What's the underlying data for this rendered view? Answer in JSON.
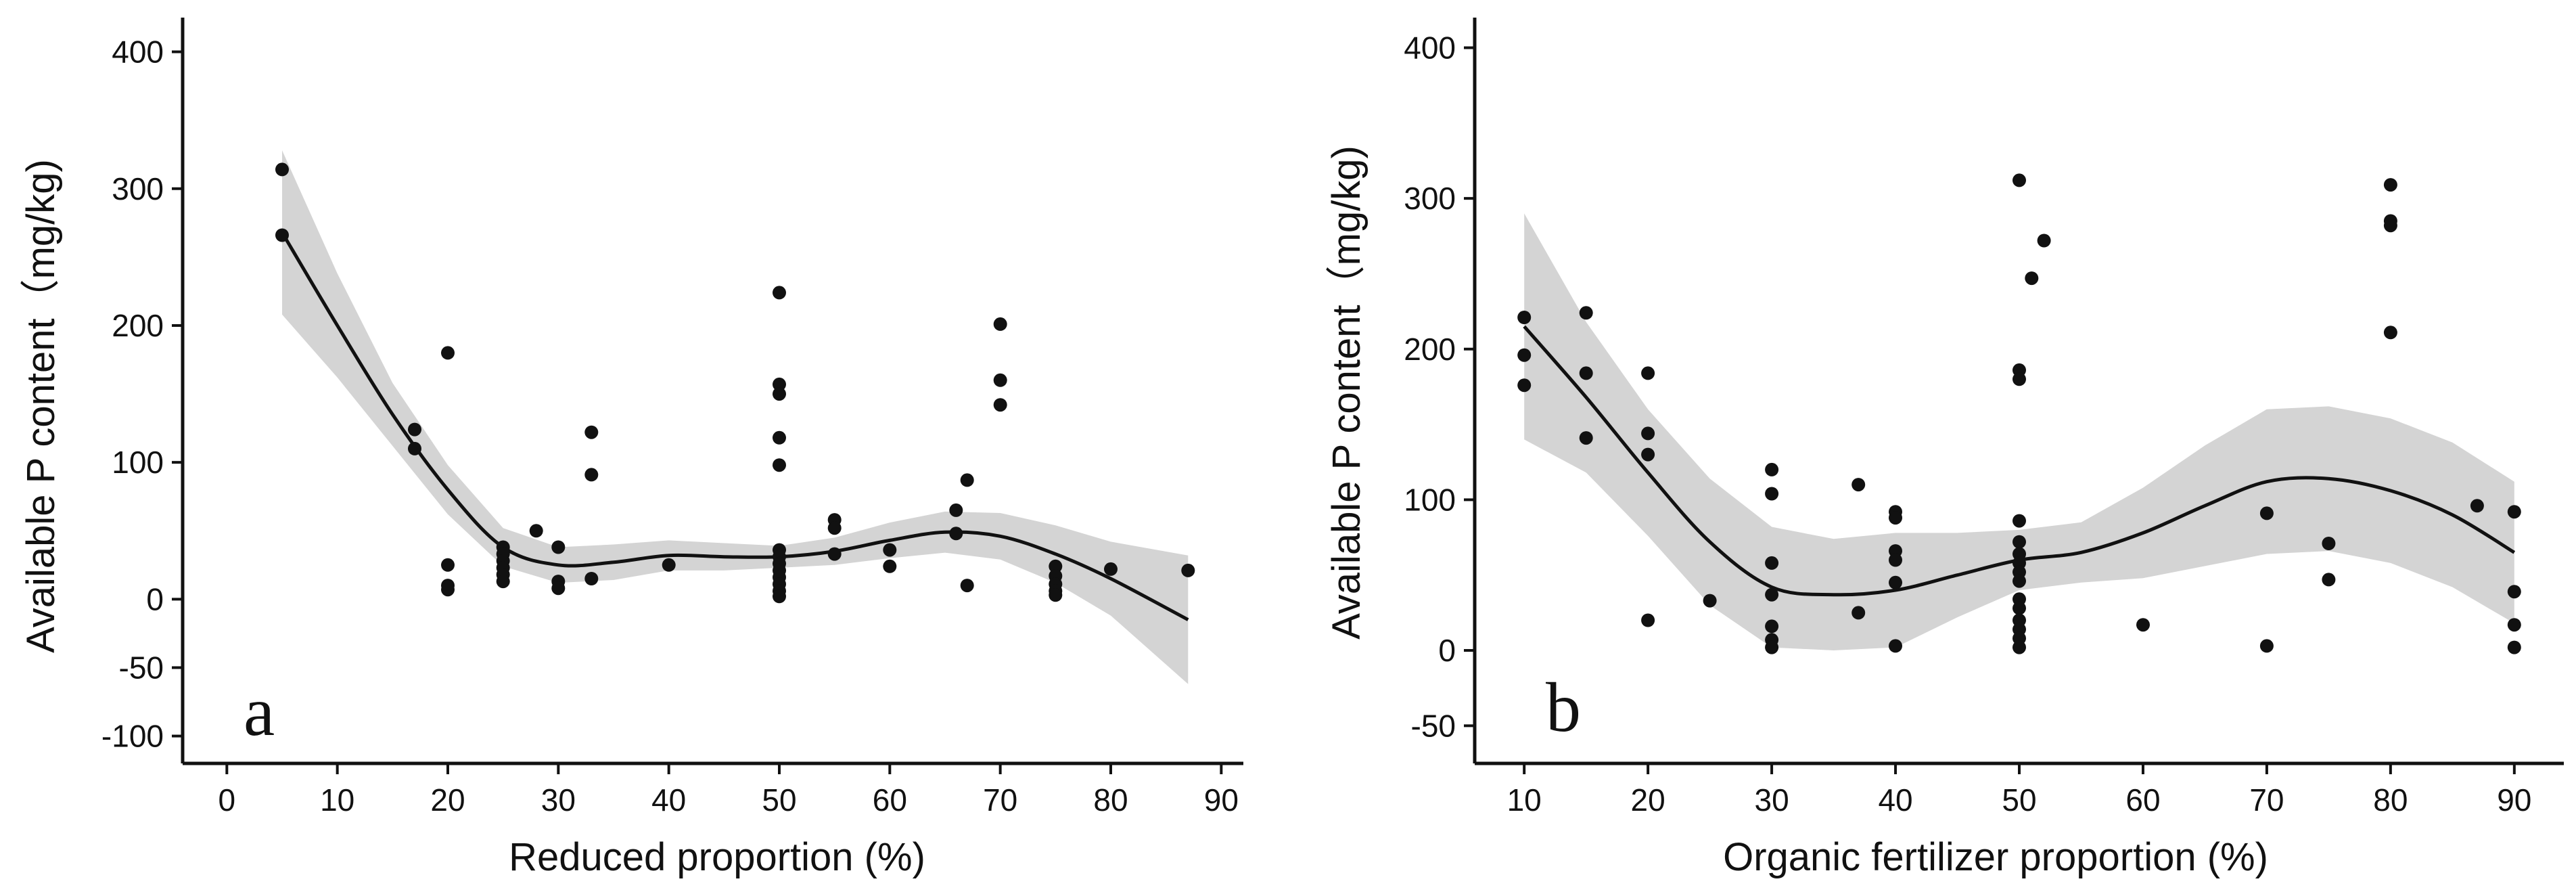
{
  "chart_data": [
    {
      "type": "scatter",
      "panel_label": "a",
      "xlabel": "Reduced proportion (%)",
      "ylabel": "Available P content（mg/kg)",
      "xlim": [
        -4,
        92
      ],
      "ylim": [
        -120,
        425
      ],
      "xticks": [
        0,
        10,
        20,
        30,
        40,
        50,
        60,
        70,
        80,
        90
      ],
      "yticks": [
        400,
        300,
        200,
        100,
        0,
        -50,
        -100
      ],
      "points": [
        [
          5,
          314
        ],
        [
          5,
          266
        ],
        [
          17,
          124
        ],
        [
          17,
          110
        ],
        [
          20,
          180
        ],
        [
          20,
          25
        ],
        [
          20,
          10
        ],
        [
          20,
          7
        ],
        [
          25,
          38
        ],
        [
          25,
          33
        ],
        [
          25,
          28
        ],
        [
          25,
          23
        ],
        [
          25,
          18
        ],
        [
          25,
          13
        ],
        [
          28,
          50
        ],
        [
          30,
          38
        ],
        [
          30,
          13
        ],
        [
          30,
          8
        ],
        [
          33,
          122
        ],
        [
          33,
          91
        ],
        [
          33,
          15
        ],
        [
          40,
          25
        ],
        [
          50,
          224
        ],
        [
          50,
          157
        ],
        [
          50,
          150
        ],
        [
          50,
          118
        ],
        [
          50,
          98
        ],
        [
          50,
          36
        ],
        [
          50,
          31
        ],
        [
          50,
          26
        ],
        [
          50,
          21
        ],
        [
          50,
          16
        ],
        [
          50,
          11
        ],
        [
          50,
          6
        ],
        [
          50,
          2
        ],
        [
          55,
          58
        ],
        [
          55,
          52
        ],
        [
          55,
          33
        ],
        [
          60,
          36
        ],
        [
          60,
          24
        ],
        [
          66,
          65
        ],
        [
          66,
          48
        ],
        [
          67,
          87
        ],
        [
          67,
          10
        ],
        [
          70,
          201
        ],
        [
          70,
          160
        ],
        [
          70,
          142
        ],
        [
          75,
          24
        ],
        [
          75,
          17
        ],
        [
          75,
          11
        ],
        [
          75,
          6
        ],
        [
          75,
          3
        ],
        [
          80,
          22
        ],
        [
          87,
          21
        ]
      ],
      "fit": {
        "x": [
          5,
          10,
          15,
          20,
          25,
          30,
          35,
          40,
          45,
          50,
          55,
          60,
          65,
          70,
          75,
          80,
          87
        ],
        "y": [
          268,
          200,
          135,
          80,
          38,
          25,
          27,
          32,
          31,
          31,
          35,
          43,
          49,
          46,
          33,
          15,
          -15
        ],
        "lower": [
          208,
          162,
          112,
          62,
          24,
          12,
          14,
          21,
          21,
          23,
          25,
          30,
          34,
          29,
          12,
          -12,
          -62
        ],
        "upper": [
          328,
          238,
          158,
          98,
          52,
          38,
          40,
          43,
          41,
          39,
          45,
          56,
          64,
          63,
          54,
          42,
          32
        ]
      }
    },
    {
      "type": "scatter",
      "panel_label": "b",
      "xlabel": "Organic fertilizer proportion (%)",
      "ylabel": "Available P content（mg/kg)",
      "xlim": [
        6,
        94
      ],
      "ylim": [
        -75,
        420
      ],
      "xticks": [
        10,
        20,
        30,
        40,
        50,
        60,
        70,
        80,
        90
      ],
      "yticks": [
        400,
        300,
        200,
        100,
        0,
        -50
      ],
      "points": [
        [
          10,
          221
        ],
        [
          10,
          196
        ],
        [
          10,
          176
        ],
        [
          15,
          224
        ],
        [
          15,
          184
        ],
        [
          15,
          141
        ],
        [
          20,
          184
        ],
        [
          20,
          144
        ],
        [
          20,
          130
        ],
        [
          20,
          20
        ],
        [
          25,
          33
        ],
        [
          30,
          120
        ],
        [
          30,
          104
        ],
        [
          30,
          58
        ],
        [
          30,
          37
        ],
        [
          30,
          16
        ],
        [
          30,
          7
        ],
        [
          30,
          2
        ],
        [
          37,
          110
        ],
        [
          37,
          25
        ],
        [
          40,
          92
        ],
        [
          40,
          88
        ],
        [
          40,
          66
        ],
        [
          40,
          60
        ],
        [
          40,
          45
        ],
        [
          40,
          3
        ],
        [
          50,
          312
        ],
        [
          50,
          186
        ],
        [
          50,
          180
        ],
        [
          50,
          86
        ],
        [
          50,
          72
        ],
        [
          50,
          64
        ],
        [
          50,
          58
        ],
        [
          50,
          52
        ],
        [
          50,
          46
        ],
        [
          50,
          34
        ],
        [
          50,
          28
        ],
        [
          50,
          20
        ],
        [
          50,
          14
        ],
        [
          50,
          8
        ],
        [
          50,
          2
        ],
        [
          51,
          247
        ],
        [
          52,
          272
        ],
        [
          60,
          17
        ],
        [
          70,
          91
        ],
        [
          70,
          3
        ],
        [
          75,
          71
        ],
        [
          75,
          47
        ],
        [
          80,
          309
        ],
        [
          80,
          285
        ],
        [
          80,
          282
        ],
        [
          80,
          211
        ],
        [
          87,
          96
        ],
        [
          90,
          92
        ],
        [
          90,
          39
        ],
        [
          90,
          17
        ],
        [
          90,
          2
        ]
      ],
      "fit": {
        "x": [
          10,
          15,
          20,
          25,
          30,
          35,
          40,
          45,
          50,
          55,
          60,
          65,
          70,
          75,
          80,
          85,
          90
        ],
        "y": [
          215,
          168,
          118,
          72,
          42,
          37,
          40,
          50,
          60,
          65,
          78,
          96,
          112,
          114,
          106,
          90,
          65
        ],
        "lower": [
          140,
          118,
          76,
          30,
          2,
          0,
          2,
          22,
          40,
          45,
          48,
          56,
          64,
          66,
          58,
          42,
          18
        ],
        "upper": [
          290,
          218,
          160,
          114,
          82,
          74,
          78,
          78,
          80,
          85,
          108,
          136,
          160,
          162,
          154,
          138,
          112
        ]
      }
    }
  ]
}
